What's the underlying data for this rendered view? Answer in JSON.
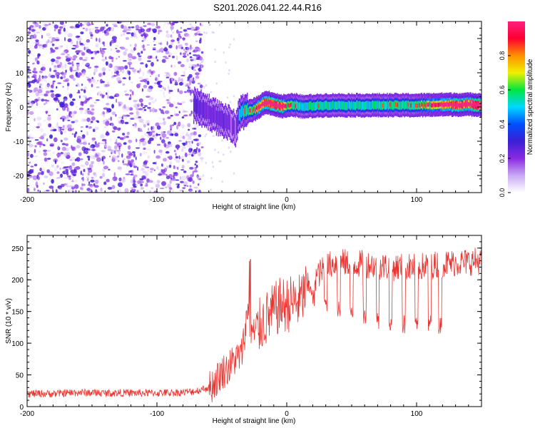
{
  "title": "S201.2026.041.22.44.R16",
  "colors": {
    "snr_line": "#e8332f",
    "noise_speckle": "#7a2bea",
    "axis": "#000000"
  },
  "chart_data": [
    {
      "type": "heatmap",
      "name": "spectrogram",
      "xlabel": "Height of straight line (km)",
      "ylabel": "Frequency (Hz)",
      "xlim": [
        -200,
        150
      ],
      "ylim": [
        -25,
        25
      ],
      "xticks": [
        -200,
        -100,
        0,
        100
      ],
      "yticks": [
        -20,
        -10,
        0,
        10,
        20
      ],
      "colorbar": {
        "label": "Normalized spectral amplitude",
        "range": [
          0,
          1
        ],
        "ticks": [
          0,
          0.2,
          0.4,
          0.6,
          0.8
        ],
        "tick_labels": [
          "0.0",
          "0.2",
          "0.4",
          "0.6",
          "0.8"
        ],
        "colormap": [
          "#ffffff",
          "#c9a9f5",
          "#8a2be2",
          "#3a1fd6",
          "#0050ff",
          "#00d8ff",
          "#00e640",
          "#f0f000",
          "#ff9000",
          "#ff0030",
          "#ff2080"
        ]
      },
      "noise_region_km": [
        -200,
        -75
      ],
      "signal_track": {
        "height_km": [
          -72,
          -68,
          -64,
          -60,
          -56,
          -52,
          -48,
          -44,
          -40,
          -38,
          -36,
          -34,
          -32,
          -28,
          -24,
          -20,
          -16,
          -12,
          -8,
          -4,
          0,
          4,
          8,
          12,
          20,
          30,
          40,
          60,
          80,
          100,
          120,
          150
        ],
        "frequency_hz": [
          0.5,
          0,
          -1,
          -1.5,
          -2.5,
          -3.5,
          -4,
          -5,
          -6.5,
          -4,
          -2,
          -1.5,
          -1.5,
          -1,
          -0.5,
          0.5,
          1.5,
          1,
          0.5,
          0.2,
          0.3,
          0.5,
          0.5,
          0,
          0.3,
          0.5,
          0.5,
          0.5,
          0.5,
          0.5,
          0.7,
          0.7
        ],
        "peak_amplitude": [
          0.35,
          0.35,
          0.3,
          0.3,
          0.3,
          0.3,
          0.3,
          0.25,
          0.25,
          0.35,
          0.45,
          0.5,
          0.55,
          0.6,
          0.7,
          0.8,
          0.9,
          0.9,
          0.9,
          0.85,
          0.6,
          0.6,
          0.55,
          0.5,
          0.55,
          0.5,
          0.5,
          0.5,
          0.55,
          0.55,
          0.8,
          0.9
        ]
      }
    },
    {
      "type": "line",
      "name": "snr",
      "xlabel": "Height of straight line (km)",
      "ylabel": "SNR (10 * v/v)",
      "xlim": [
        -200,
        150
      ],
      "ylim": [
        0,
        270
      ],
      "xticks": [
        -200,
        -100,
        0,
        100
      ],
      "yticks": [
        0,
        50,
        100,
        150,
        200,
        250
      ],
      "series": [
        {
          "name": "SNR",
          "x": [
            -200,
            -180,
            -160,
            -140,
            -120,
            -100,
            -80,
            -70,
            -60,
            -55,
            -50,
            -45,
            -40,
            -35,
            -30,
            -28,
            -25,
            -20,
            -15,
            -10,
            -5,
            0,
            5,
            10,
            15,
            20,
            25,
            30,
            35,
            40,
            50,
            60,
            80,
            100,
            120,
            150
          ],
          "y": [
            18,
            18,
            20,
            19,
            19,
            19,
            20,
            22,
            28,
            40,
            55,
            60,
            75,
            80,
            150,
            140,
            110,
            130,
            140,
            150,
            160,
            160,
            165,
            165,
            185,
            200,
            210,
            220,
            225,
            228,
            225,
            225,
            220,
            220,
            225,
            230
          ]
        }
      ],
      "periodic_dips": {
        "x": [
          20,
          30,
          40,
          50,
          60,
          70,
          80,
          90,
          100,
          110,
          118
        ],
        "y": [
          155,
          150,
          140,
          130,
          125,
          120,
          120,
          115,
          115,
          115,
          115
        ]
      }
    }
  ]
}
